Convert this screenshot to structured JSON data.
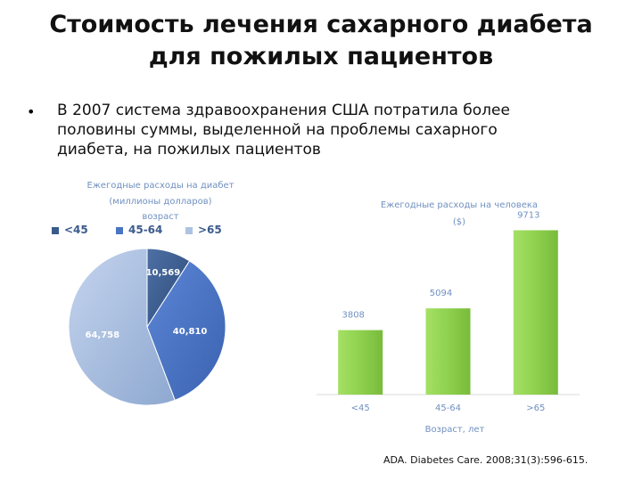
{
  "slide": {
    "title_line1": "Стоимость лечения сахарного диабета",
    "title_line2": "для пожилых пациентов",
    "bullet": "В 2007 система здравоохранения США потратила более половины  суммы, выделенной на проблемы сахарного диабета, на пожилых пациентов",
    "citation": "ADA. Diabetes Care. 2008;31(3):596-615."
  },
  "chart_data": [
    {
      "type": "pie",
      "title_line1": "Ежегодные расходы на диабет",
      "title_line2": "(миллионы долларов)",
      "legend_title": "возраст",
      "legend_position": "top",
      "categories": [
        "<45",
        "45-64",
        ">65"
      ],
      "values": [
        10569,
        40810,
        64758
      ],
      "value_labels": [
        "10,569",
        "40,810",
        "64,758"
      ],
      "colors": [
        "#3a5a8c",
        "#4a74c4",
        "#aec3e2"
      ]
    },
    {
      "type": "bar",
      "title_line1": "Ежегодные расходы на человека",
      "title_line2": "($)",
      "categories": [
        "<45",
        "45-64",
        ">65"
      ],
      "values": [
        3808,
        5094,
        9713
      ],
      "xlabel": "Возраст, лет",
      "ylabel": "",
      "ylim": [
        0,
        10000
      ],
      "grid": false,
      "color": "#8fd14f"
    }
  ]
}
